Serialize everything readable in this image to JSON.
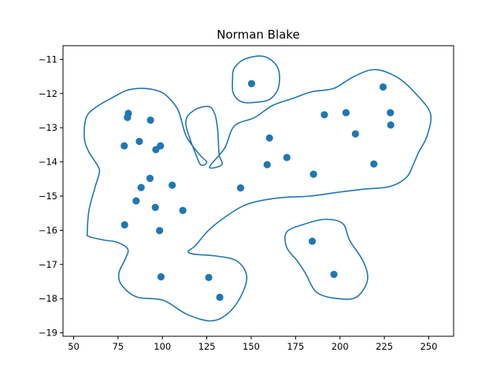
{
  "chart_data": {
    "type": "scatter",
    "title": "Norman Blake",
    "xlabel": "",
    "ylabel": "",
    "xlim": [
      44,
      264
    ],
    "ylim": [
      -19.1,
      -10.6
    ],
    "xticks": [
      50,
      75,
      100,
      125,
      150,
      175,
      200,
      225,
      250
    ],
    "yticks": [
      -11,
      -12,
      -13,
      -14,
      -15,
      -16,
      -17,
      -18,
      -19
    ],
    "xtick_labels": [
      "50",
      "75",
      "100",
      "125",
      "150",
      "175",
      "200",
      "225",
      "250"
    ],
    "ytick_labels": [
      "−11",
      "−12",
      "−13",
      "−14",
      "−15",
      "−16",
      "−17",
      "−18",
      "−19"
    ],
    "grid": false,
    "point_color": "#1f77b4",
    "contour_color": "#1f77b4",
    "points": [
      {
        "x": 150.2,
        "y": -11.71
      },
      {
        "x": 80.8,
        "y": -12.58
      },
      {
        "x": 80.3,
        "y": -12.7
      },
      {
        "x": 93.3,
        "y": -12.78
      },
      {
        "x": 78.5,
        "y": -13.53
      },
      {
        "x": 87.0,
        "y": -13.4
      },
      {
        "x": 96.3,
        "y": -13.64
      },
      {
        "x": 98.9,
        "y": -13.53
      },
      {
        "x": 93.0,
        "y": -14.48
      },
      {
        "x": 88.0,
        "y": -14.75
      },
      {
        "x": 105.5,
        "y": -14.68
      },
      {
        "x": 85.2,
        "y": -15.14
      },
      {
        "x": 96.0,
        "y": -15.33
      },
      {
        "x": 111.5,
        "y": -15.42
      },
      {
        "x": 78.7,
        "y": -15.84
      },
      {
        "x": 98.4,
        "y": -16.01
      },
      {
        "x": 99.2,
        "y": -17.36
      },
      {
        "x": 126.1,
        "y": -17.38
      },
      {
        "x": 132.3,
        "y": -17.96
      },
      {
        "x": 144.0,
        "y": -14.76
      },
      {
        "x": 159.0,
        "y": -14.08
      },
      {
        "x": 160.3,
        "y": -13.3
      },
      {
        "x": 170.1,
        "y": -13.87
      },
      {
        "x": 185.1,
        "y": -14.36
      },
      {
        "x": 191.2,
        "y": -12.62
      },
      {
        "x": 203.4,
        "y": -12.56
      },
      {
        "x": 208.7,
        "y": -13.18
      },
      {
        "x": 219.1,
        "y": -14.06
      },
      {
        "x": 224.3,
        "y": -11.81
      },
      {
        "x": 228.4,
        "y": -12.56
      },
      {
        "x": 228.6,
        "y": -12.92
      },
      {
        "x": 184.4,
        "y": -16.32
      },
      {
        "x": 196.6,
        "y": -17.29
      }
    ],
    "contours": [
      [
        [
          57.7,
          -16.05
        ],
        [
          58.7,
          -15.4
        ],
        [
          62.0,
          -14.75
        ],
        [
          64.5,
          -14.3
        ],
        [
          63.4,
          -14.1
        ],
        [
          58.5,
          -13.7
        ],
        [
          56.0,
          -13.3
        ],
        [
          57.1,
          -12.7
        ],
        [
          62.6,
          -12.4
        ],
        [
          72.5,
          -12.1
        ],
        [
          80.5,
          -11.9
        ],
        [
          90.0,
          -11.85
        ],
        [
          99.0,
          -11.95
        ],
        [
          104.0,
          -12.15
        ],
        [
          108.5,
          -12.45
        ],
        [
          110.5,
          -12.75
        ],
        [
          113.0,
          -13.2
        ],
        [
          116.5,
          -13.5
        ],
        [
          122.0,
          -13.85
        ],
        [
          125.0,
          -14.0
        ],
        [
          122.5,
          -14.1
        ],
        [
          120.0,
          -13.93
        ],
        [
          113.2,
          -12.9
        ],
        [
          117.5,
          -12.5
        ],
        [
          126.0,
          -12.38
        ],
        [
          129.5,
          -12.6
        ],
        [
          131.0,
          -13.0
        ],
        [
          131.5,
          -13.4
        ],
        [
          132.0,
          -13.8
        ],
        [
          133.5,
          -14.08
        ],
        [
          126.5,
          -14.15
        ]
      ]
    ]
  }
}
